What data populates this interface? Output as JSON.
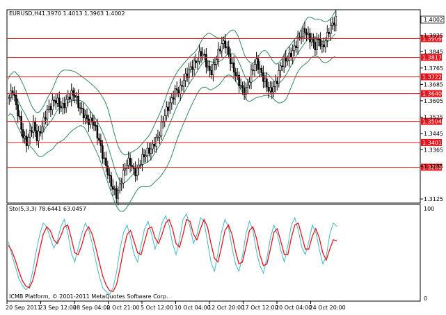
{
  "header": {
    "symbol_label": "EURUSD,H4",
    "ohlc_label": "1.3970 1.4013 1.3963 1.4002",
    "stoch_label": "Sto(5,3,3) 78.6441 63.0457",
    "copyright": "ICMB Platform, © 2001-2011 MetaQuotes Software Corp."
  },
  "colors": {
    "background": "#ffffff",
    "candle": "#000000",
    "bands": "#2e8b57",
    "levels": "#e8141c",
    "level_label_bg": "#e8141c",
    "stoch_main": "#41b8c8",
    "stoch_signal": "#e8141c",
    "current_price_bg": "#ffffff"
  },
  "chart_data": [
    {
      "type": "candlestick",
      "symbol": "EURUSD",
      "timeframe": "H4",
      "ylim": [
        1.3105,
        1.405
      ],
      "price_ticks": [
        "1.4002",
        "1.3925",
        "1.3845",
        "1.3765",
        "1.3685",
        "1.3605",
        "1.3525",
        "1.3445",
        "1.3365",
        "1.3285",
        "1.3125"
      ],
      "current_price": "1.4002",
      "horizontal_levels": [
        "1.3909",
        "1.3817",
        "1.3722",
        "1.3640",
        "1.3504",
        "1.3401",
        "1.3280"
      ],
      "x_tick_labels": [
        "20 Sep 2011",
        "23 Sep 12:00",
        "28 Sep 04:00",
        "2 Oct 21:00",
        "5 Oct 12:00",
        "10 Oct 04:00",
        "12 Oct 20:00",
        "17 Oct 12:00",
        "20 Oct 04:00",
        "24 Oct 20:00"
      ],
      "close_path": [
        1.362,
        1.366,
        1.358,
        1.351,
        1.343,
        1.34,
        1.345,
        1.349,
        1.342,
        1.346,
        1.351,
        1.356,
        1.358,
        1.361,
        1.36,
        1.357,
        1.359,
        1.362,
        1.364,
        1.363,
        1.358,
        1.355,
        1.352,
        1.35,
        1.351,
        1.346,
        1.34,
        1.333,
        1.328,
        1.321,
        1.317,
        1.314,
        1.32,
        1.326,
        1.331,
        1.33,
        1.325,
        1.327,
        1.332,
        1.334,
        1.336,
        1.337,
        1.341,
        1.343,
        1.35,
        1.355,
        1.358,
        1.362,
        1.366,
        1.365,
        1.37,
        1.373,
        1.376,
        1.378,
        1.38,
        1.384,
        1.383,
        1.377,
        1.374,
        1.378,
        1.383,
        1.388,
        1.389,
        1.384,
        1.378,
        1.374,
        1.37,
        1.366,
        1.365,
        1.37,
        1.376,
        1.38,
        1.376,
        1.372,
        1.368,
        1.365,
        1.367,
        1.37,
        1.377,
        1.38,
        1.381,
        1.383,
        1.386,
        1.39,
        1.393,
        1.395,
        1.392,
        1.39,
        1.387,
        1.391,
        1.386,
        1.39,
        1.395,
        1.398,
        1.4002
      ],
      "band_width_path": [
        0.009,
        0.01,
        0.012,
        0.013,
        0.013,
        0.012,
        0.011,
        0.01,
        0.01,
        0.011,
        0.012,
        0.013,
        0.014,
        0.015,
        0.016,
        0.017,
        0.017,
        0.016,
        0.015,
        0.014,
        0.013,
        0.012,
        0.012,
        0.013,
        0.014,
        0.015,
        0.016,
        0.017,
        0.018,
        0.018,
        0.017,
        0.016,
        0.015,
        0.014,
        0.013,
        0.012,
        0.011,
        0.01,
        0.01,
        0.011,
        0.012,
        0.013,
        0.014,
        0.015,
        0.016,
        0.017,
        0.018,
        0.018,
        0.017,
        0.016,
        0.015,
        0.014,
        0.013,
        0.012,
        0.011,
        0.011,
        0.012,
        0.013,
        0.014,
        0.013,
        0.012,
        0.011,
        0.01,
        0.01,
        0.011,
        0.012,
        0.012,
        0.011,
        0.01,
        0.01,
        0.009,
        0.009,
        0.01,
        0.011,
        0.011,
        0.01,
        0.009,
        0.009,
        0.01,
        0.011,
        0.012,
        0.011,
        0.01,
        0.009,
        0.009,
        0.01,
        0.011,
        0.01,
        0.009,
        0.009,
        0.01,
        0.01,
        0.01,
        0.01,
        0.011
      ]
    },
    {
      "type": "line",
      "indicator": "Stochastic Oscillator",
      "ylim": [
        0,
        100
      ],
      "y_ticks": [
        "100",
        "0"
      ],
      "series": [
        {
          "values": [
            62,
            48,
            35,
            22,
            15,
            10,
            14,
            30,
            52,
            70,
            82,
            78,
            66,
            55,
            62,
            78,
            86,
            72,
            50,
            40,
            55,
            70,
            82,
            75,
            60,
            42,
            25,
            12,
            8,
            5,
            12,
            30,
            55,
            72,
            80,
            66,
            48,
            40,
            58,
            76,
            84,
            70,
            54,
            66,
            82,
            90,
            80,
            60,
            48,
            64,
            86,
            92,
            78,
            60,
            70,
            88,
            84,
            62,
            40,
            30,
            50,
            72,
            86,
            78,
            56,
            38,
            30,
            46,
            70,
            84,
            74,
            52,
            36,
            28,
            44,
            66,
            80,
            70,
            52,
            40,
            58,
            80,
            88,
            74,
            56,
            48,
            62,
            80,
            72,
            54,
            38,
            46,
            70,
            82,
            78.6441
          ]
        },
        {
          "values": [
            58,
            52,
            42,
            30,
            20,
            14,
            12,
            20,
            36,
            54,
            70,
            78,
            74,
            64,
            60,
            68,
            78,
            80,
            66,
            50,
            48,
            58,
            72,
            78,
            70,
            56,
            40,
            25,
            15,
            9,
            8,
            16,
            34,
            54,
            70,
            74,
            62,
            50,
            48,
            62,
            76,
            78,
            66,
            60,
            70,
            82,
            86,
            76,
            60,
            56,
            70,
            86,
            84,
            70,
            64,
            76,
            86,
            78,
            60,
            44,
            40,
            56,
            74,
            80,
            70,
            52,
            38,
            40,
            56,
            74,
            78,
            66,
            48,
            36,
            38,
            54,
            72,
            76,
            62,
            48,
            48,
            66,
            80,
            82,
            68,
            54,
            54,
            68,
            76,
            66,
            50,
            42,
            54,
            64,
            63.0457
          ]
        }
      ]
    }
  ]
}
